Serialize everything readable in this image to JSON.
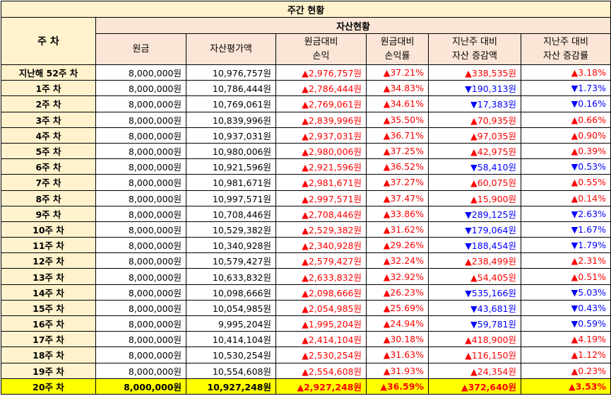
{
  "title": "주간 현황",
  "header": {
    "week_col": "주 차",
    "section": "자산현황",
    "cols": [
      "원금",
      "자산평가액",
      "원금대비\n손익",
      "원금대비\n손익률",
      "지난주 대비\n자산 증감액",
      "지난주 대비\n자산 증감률"
    ]
  },
  "colors": {
    "up": "#ff0000",
    "down": "#0000ff",
    "highlight": "#ffff00",
    "header_bg": "#fbe5d6",
    "week_bg": "#fff2cc"
  },
  "rows": [
    {
      "week": "지난해 52주 차",
      "principal": "8,000,000원",
      "asset": "10,976,757원",
      "pl": "▲2,976,757원",
      "plr": "▲37.21%",
      "chg": "▲338,535원",
      "chgr": "▲3.18%",
      "dir": "up"
    },
    {
      "week": "1주 차",
      "principal": "8,000,000원",
      "asset": "10,786,444원",
      "pl": "▲2,786,444원",
      "plr": "▲34.83%",
      "chg": "▼190,313원",
      "chgr": "▼1.73%",
      "dir": "down"
    },
    {
      "week": "2주 차",
      "principal": "8,000,000원",
      "asset": "10,769,061원",
      "pl": "▲2,769,061원",
      "plr": "▲34.61%",
      "chg": "▼17,383원",
      "chgr": "▼0.16%",
      "dir": "down"
    },
    {
      "week": "3주 차",
      "principal": "8,000,000원",
      "asset": "10,839,996원",
      "pl": "▲2,839,996원",
      "plr": "▲35.50%",
      "chg": "▲70,935원",
      "chgr": "▲0.66%",
      "dir": "up"
    },
    {
      "week": "4주 차",
      "principal": "8,000,000원",
      "asset": "10,937,031원",
      "pl": "▲2,937,031원",
      "plr": "▲36.71%",
      "chg": "▲97,035원",
      "chgr": "▲0.90%",
      "dir": "up"
    },
    {
      "week": "5주 차",
      "principal": "8,000,000원",
      "asset": "10,980,006원",
      "pl": "▲2,980,006원",
      "plr": "▲37.25%",
      "chg": "▲42,975원",
      "chgr": "▲0.39%",
      "dir": "up"
    },
    {
      "week": "6주 차",
      "principal": "8,000,000원",
      "asset": "10,921,596원",
      "pl": "▲2,921,596원",
      "plr": "▲36.52%",
      "chg": "▼58,410원",
      "chgr": "▼0.53%",
      "dir": "down"
    },
    {
      "week": "7주 차",
      "principal": "8,000,000원",
      "asset": "10,981,671원",
      "pl": "▲2,981,671원",
      "plr": "▲37.27%",
      "chg": "▲60,075원",
      "chgr": "▲0.55%",
      "dir": "up"
    },
    {
      "week": "8주 차",
      "principal": "8,000,000원",
      "asset": "10,997,571원",
      "pl": "▲2,997,571원",
      "plr": "▲37.47%",
      "chg": "▲15,900원",
      "chgr": "▲0.14%",
      "dir": "up"
    },
    {
      "week": "9주 차",
      "principal": "8,000,000원",
      "asset": "10,708,446원",
      "pl": "▲2,708,446원",
      "plr": "▲33.86%",
      "chg": "▼289,125원",
      "chgr": "▼2.63%",
      "dir": "down"
    },
    {
      "week": "10주 차",
      "principal": "8,000,000원",
      "asset": "10,529,382원",
      "pl": "▲2,529,382원",
      "plr": "▲31.62%",
      "chg": "▼179,064원",
      "chgr": "▼1.67%",
      "dir": "down"
    },
    {
      "week": "11주 차",
      "principal": "8,000,000원",
      "asset": "10,340,928원",
      "pl": "▲2,340,928원",
      "plr": "▲29.26%",
      "chg": "▼188,454원",
      "chgr": "▼1.79%",
      "dir": "down"
    },
    {
      "week": "12주 차",
      "principal": "8,000,000원",
      "asset": "10,579,427원",
      "pl": "▲2,579,427원",
      "plr": "▲32.24%",
      "chg": "▲238,499원",
      "chgr": "▲2.31%",
      "dir": "up"
    },
    {
      "week": "13주 차",
      "principal": "8,000,000원",
      "asset": "10,633,832원",
      "pl": "▲2,633,832원",
      "plr": "▲32.92%",
      "chg": "▲54,405원",
      "chgr": "▲0.51%",
      "dir": "up"
    },
    {
      "week": "14주 차",
      "principal": "8,000,000원",
      "asset": "10,098,666원",
      "pl": "▲2,098,666원",
      "plr": "▲26.23%",
      "chg": "▼535,166원",
      "chgr": "▼5.03%",
      "dir": "down"
    },
    {
      "week": "15주 차",
      "principal": "8,000,000원",
      "asset": "10,054,985원",
      "pl": "▲2,054,985원",
      "plr": "▲25.69%",
      "chg": "▼43,681원",
      "chgr": "▼0.43%",
      "dir": "down"
    },
    {
      "week": "16주 차",
      "principal": "8,000,000원",
      "asset": "9,995,204원",
      "pl": "▲1,995,204원",
      "plr": "▲24.94%",
      "chg": "▼59,781원",
      "chgr": "▼0.59%",
      "dir": "down"
    },
    {
      "week": "17주 차",
      "principal": "8,000,000원",
      "asset": "10,414,104원",
      "pl": "▲2,414,104원",
      "plr": "▲30.18%",
      "chg": "▲418,900원",
      "chgr": "▲4.19%",
      "dir": "up"
    },
    {
      "week": "18주 차",
      "principal": "8,000,000원",
      "asset": "10,530,254원",
      "pl": "▲2,530,254원",
      "plr": "▲31.63%",
      "chg": "▲116,150원",
      "chgr": "▲1.12%",
      "dir": "up"
    },
    {
      "week": "19주 차",
      "principal": "8,000,000원",
      "asset": "10,554,608원",
      "pl": "▲2,554,608원",
      "plr": "▲31.93%",
      "chg": "▲24,354원",
      "chgr": "▲0.23%",
      "dir": "up"
    },
    {
      "week": "20주 차",
      "principal": "8,000,000원",
      "asset": "10,927,248원",
      "pl": "▲2,927,248원",
      "plr": "▲36.59%",
      "chg": "▲372,640원",
      "chgr": "▲3.53%",
      "dir": "up",
      "highlight": true
    }
  ]
}
